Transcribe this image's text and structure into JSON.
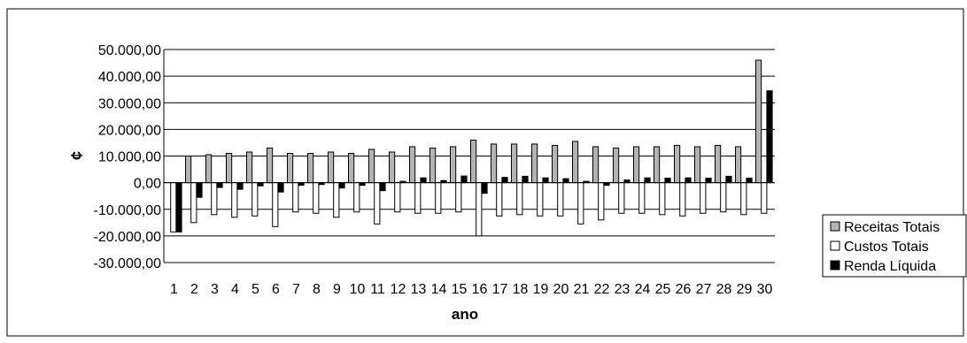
{
  "chart_data": {
    "type": "bar",
    "title": "",
    "xlabel": "ano",
    "ylabel": "¢",
    "ylim": [
      -30000,
      50000
    ],
    "ytick_step": 10000,
    "yticks": [
      "50.000,00",
      "40.000,00",
      "30.000,00",
      "20.000,00",
      "10.000,00",
      "0,00",
      "-10.000,00",
      "-20.000,00",
      "-30.000,00"
    ],
    "grid": true,
    "legend_position": "right",
    "categories": [
      "1",
      "2",
      "3",
      "4",
      "5",
      "6",
      "7",
      "8",
      "9",
      "10",
      "11",
      "12",
      "13",
      "14",
      "15",
      "16",
      "17",
      "18",
      "19",
      "20",
      "21",
      "22",
      "23",
      "24",
      "25",
      "26",
      "27",
      "28",
      "29",
      "30"
    ],
    "series": [
      {
        "name": "Receitas Totais",
        "color": "#b3b3b3",
        "values": [
          0,
          10000,
          10500,
          11000,
          11500,
          13000,
          11000,
          11000,
          11500,
          11000,
          12500,
          11500,
          13500,
          13000,
          13500,
          16000,
          14500,
          14500,
          14500,
          14000,
          15500,
          13500,
          13000,
          13500,
          13500,
          14000,
          13500,
          14000,
          13500,
          46000
        ]
      },
      {
        "name": "Custos Totais",
        "color": "#ffffff",
        "values": [
          -18500,
          -15000,
          -12000,
          -13000,
          -12500,
          -16500,
          -11000,
          -11500,
          -13000,
          -11000,
          -15500,
          -11000,
          -11500,
          -11500,
          -11000,
          -20000,
          -12500,
          -12000,
          -12500,
          -12500,
          -15500,
          -14000,
          -11500,
          -11500,
          -12000,
          -12500,
          -11500,
          -11000,
          -12000,
          -11500
        ]
      },
      {
        "name": "Renda Líquida",
        "color": "#000000",
        "values": [
          -18500,
          -5500,
          -1800,
          -2500,
          -1200,
          -3500,
          -1000,
          -700,
          -2000,
          -1000,
          -3000,
          500,
          1800,
          800,
          2500,
          -4000,
          2000,
          2400,
          1800,
          1500,
          500,
          -1000,
          1000,
          1800,
          1700,
          1800,
          1700,
          2400,
          1700,
          34500
        ]
      }
    ]
  }
}
